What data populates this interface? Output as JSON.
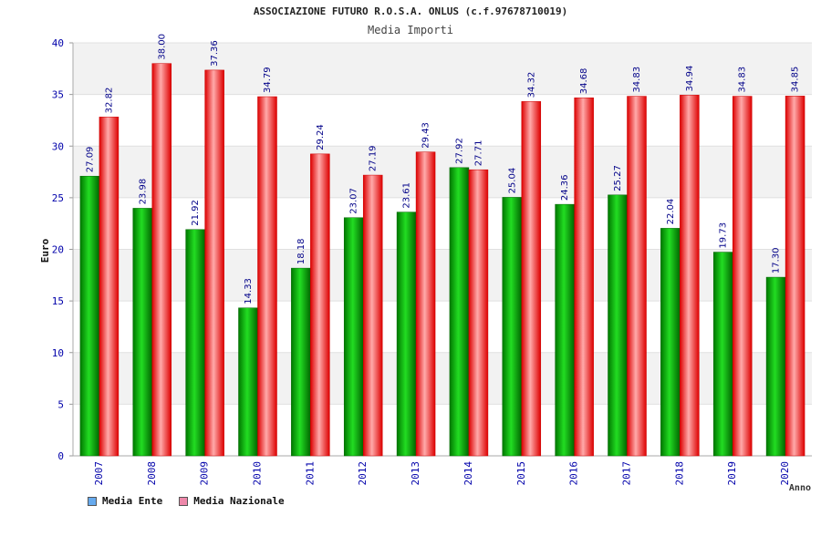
{
  "chart_data": {
    "type": "bar",
    "title": "ASSOCIAZIONE FUTURO R.O.S.A. ONLUS (c.f.97678710019)",
    "subtitle": "Media Importi",
    "xlabel": "Anno",
    "ylabel": "Euro",
    "ylim": [
      0,
      40
    ],
    "yticks": [
      0,
      5,
      10,
      15,
      20,
      25,
      30,
      35,
      40
    ],
    "grid": true,
    "legend_position": "bottom-left",
    "categories": [
      "2007",
      "2008",
      "2009",
      "2010",
      "2011",
      "2012",
      "2013",
      "2014",
      "2015",
      "2016",
      "2017",
      "2018",
      "2019",
      "2020"
    ],
    "series": [
      {
        "name": "Media Ente",
        "values": [
          27.09,
          23.98,
          21.92,
          14.33,
          18.18,
          23.07,
          23.61,
          27.92,
          25.04,
          24.36,
          25.27,
          22.04,
          19.73,
          17.3
        ],
        "labels": [
          "27.09",
          "23.98",
          "21.92",
          "14.33",
          "18.18",
          "23.07",
          "23.61",
          "27.92",
          "25.04",
          "24.36",
          "25.27",
          "22.04",
          "19.73",
          "17.30"
        ],
        "color": "#00aa00",
        "legend_color": "#66aaee"
      },
      {
        "name": "Media Nazionale",
        "values": [
          32.82,
          38.0,
          37.36,
          34.79,
          29.24,
          27.19,
          29.43,
          27.71,
          34.32,
          34.68,
          34.83,
          34.94,
          34.83,
          34.85
        ],
        "labels": [
          "32.82",
          "38.00",
          "37.36",
          "34.79",
          "29.24",
          "27.19",
          "29.43",
          "27.71",
          "34.32",
          "34.68",
          "34.83",
          "34.94",
          "34.83",
          "34.85"
        ],
        "color": "#ee1111",
        "legend_color": "#ee88aa"
      }
    ]
  }
}
